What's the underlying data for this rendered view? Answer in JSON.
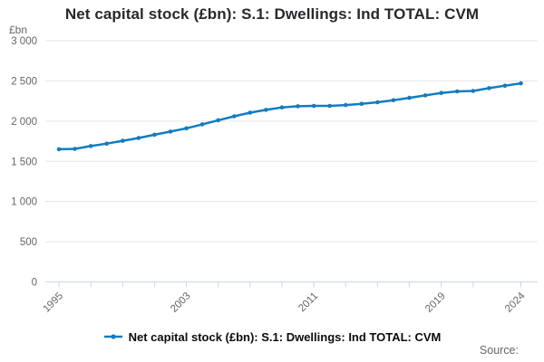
{
  "chart": {
    "title": "Net capital stock (£bn): S.1: Dwellings: Ind TOTAL: CVM",
    "y_axis": {
      "unit": "£bn",
      "tick_labels": [
        "0",
        "500",
        "1 000",
        "1 500",
        "2 000",
        "2 500",
        "3 000"
      ]
    },
    "x_axis": {
      "tick_years": [
        1995,
        1997,
        1999,
        2001,
        2003,
        2005,
        2007,
        2009,
        2011,
        2013,
        2015,
        2017,
        2019,
        2021,
        2024
      ],
      "label_years": [
        1995,
        2003,
        2011,
        2019,
        2024
      ],
      "labels": [
        "1995",
        "2003",
        "2011",
        "2019",
        "2024"
      ]
    },
    "legend": {
      "label": "Net capital stock (£bn): S.1: Dwellings: Ind TOTAL: CVM"
    },
    "source_label": "Source:"
  },
  "chart_data": {
    "type": "line",
    "title": "Net capital stock (£bn): S.1: Dwellings: Ind TOTAL: CVM",
    "xlabel": "",
    "ylabel": "£bn",
    "xlim": [
      1995,
      2024
    ],
    "ylim": [
      0,
      3000
    ],
    "y_tick_interval": 500,
    "grid": true,
    "legend_position": "bottom",
    "marker": "circle",
    "series": [
      {
        "name": "Net capital stock (£bn): S.1: Dwellings: Ind TOTAL: CVM",
        "x": [
          1995,
          1996,
          1997,
          1998,
          1999,
          2000,
          2001,
          2002,
          2003,
          2004,
          2005,
          2006,
          2007,
          2008,
          2009,
          2010,
          2011,
          2012,
          2013,
          2014,
          2015,
          2016,
          2017,
          2018,
          2019,
          2020,
          2021,
          2022,
          2023,
          2024
        ],
        "values": [
          1650,
          1655,
          1690,
          1720,
          1755,
          1790,
          1830,
          1870,
          1910,
          1960,
          2010,
          2060,
          2105,
          2140,
          2170,
          2185,
          2190,
          2190,
          2200,
          2215,
          2235,
          2260,
          2290,
          2320,
          2350,
          2370,
          2375,
          2410,
          2440,
          2470
        ]
      }
    ]
  },
  "colors": {
    "line": "#127cc0",
    "grid": "#e6e6e6",
    "axis": "#ccd6eb",
    "axis_label": "#666666",
    "title": "#28282e"
  }
}
